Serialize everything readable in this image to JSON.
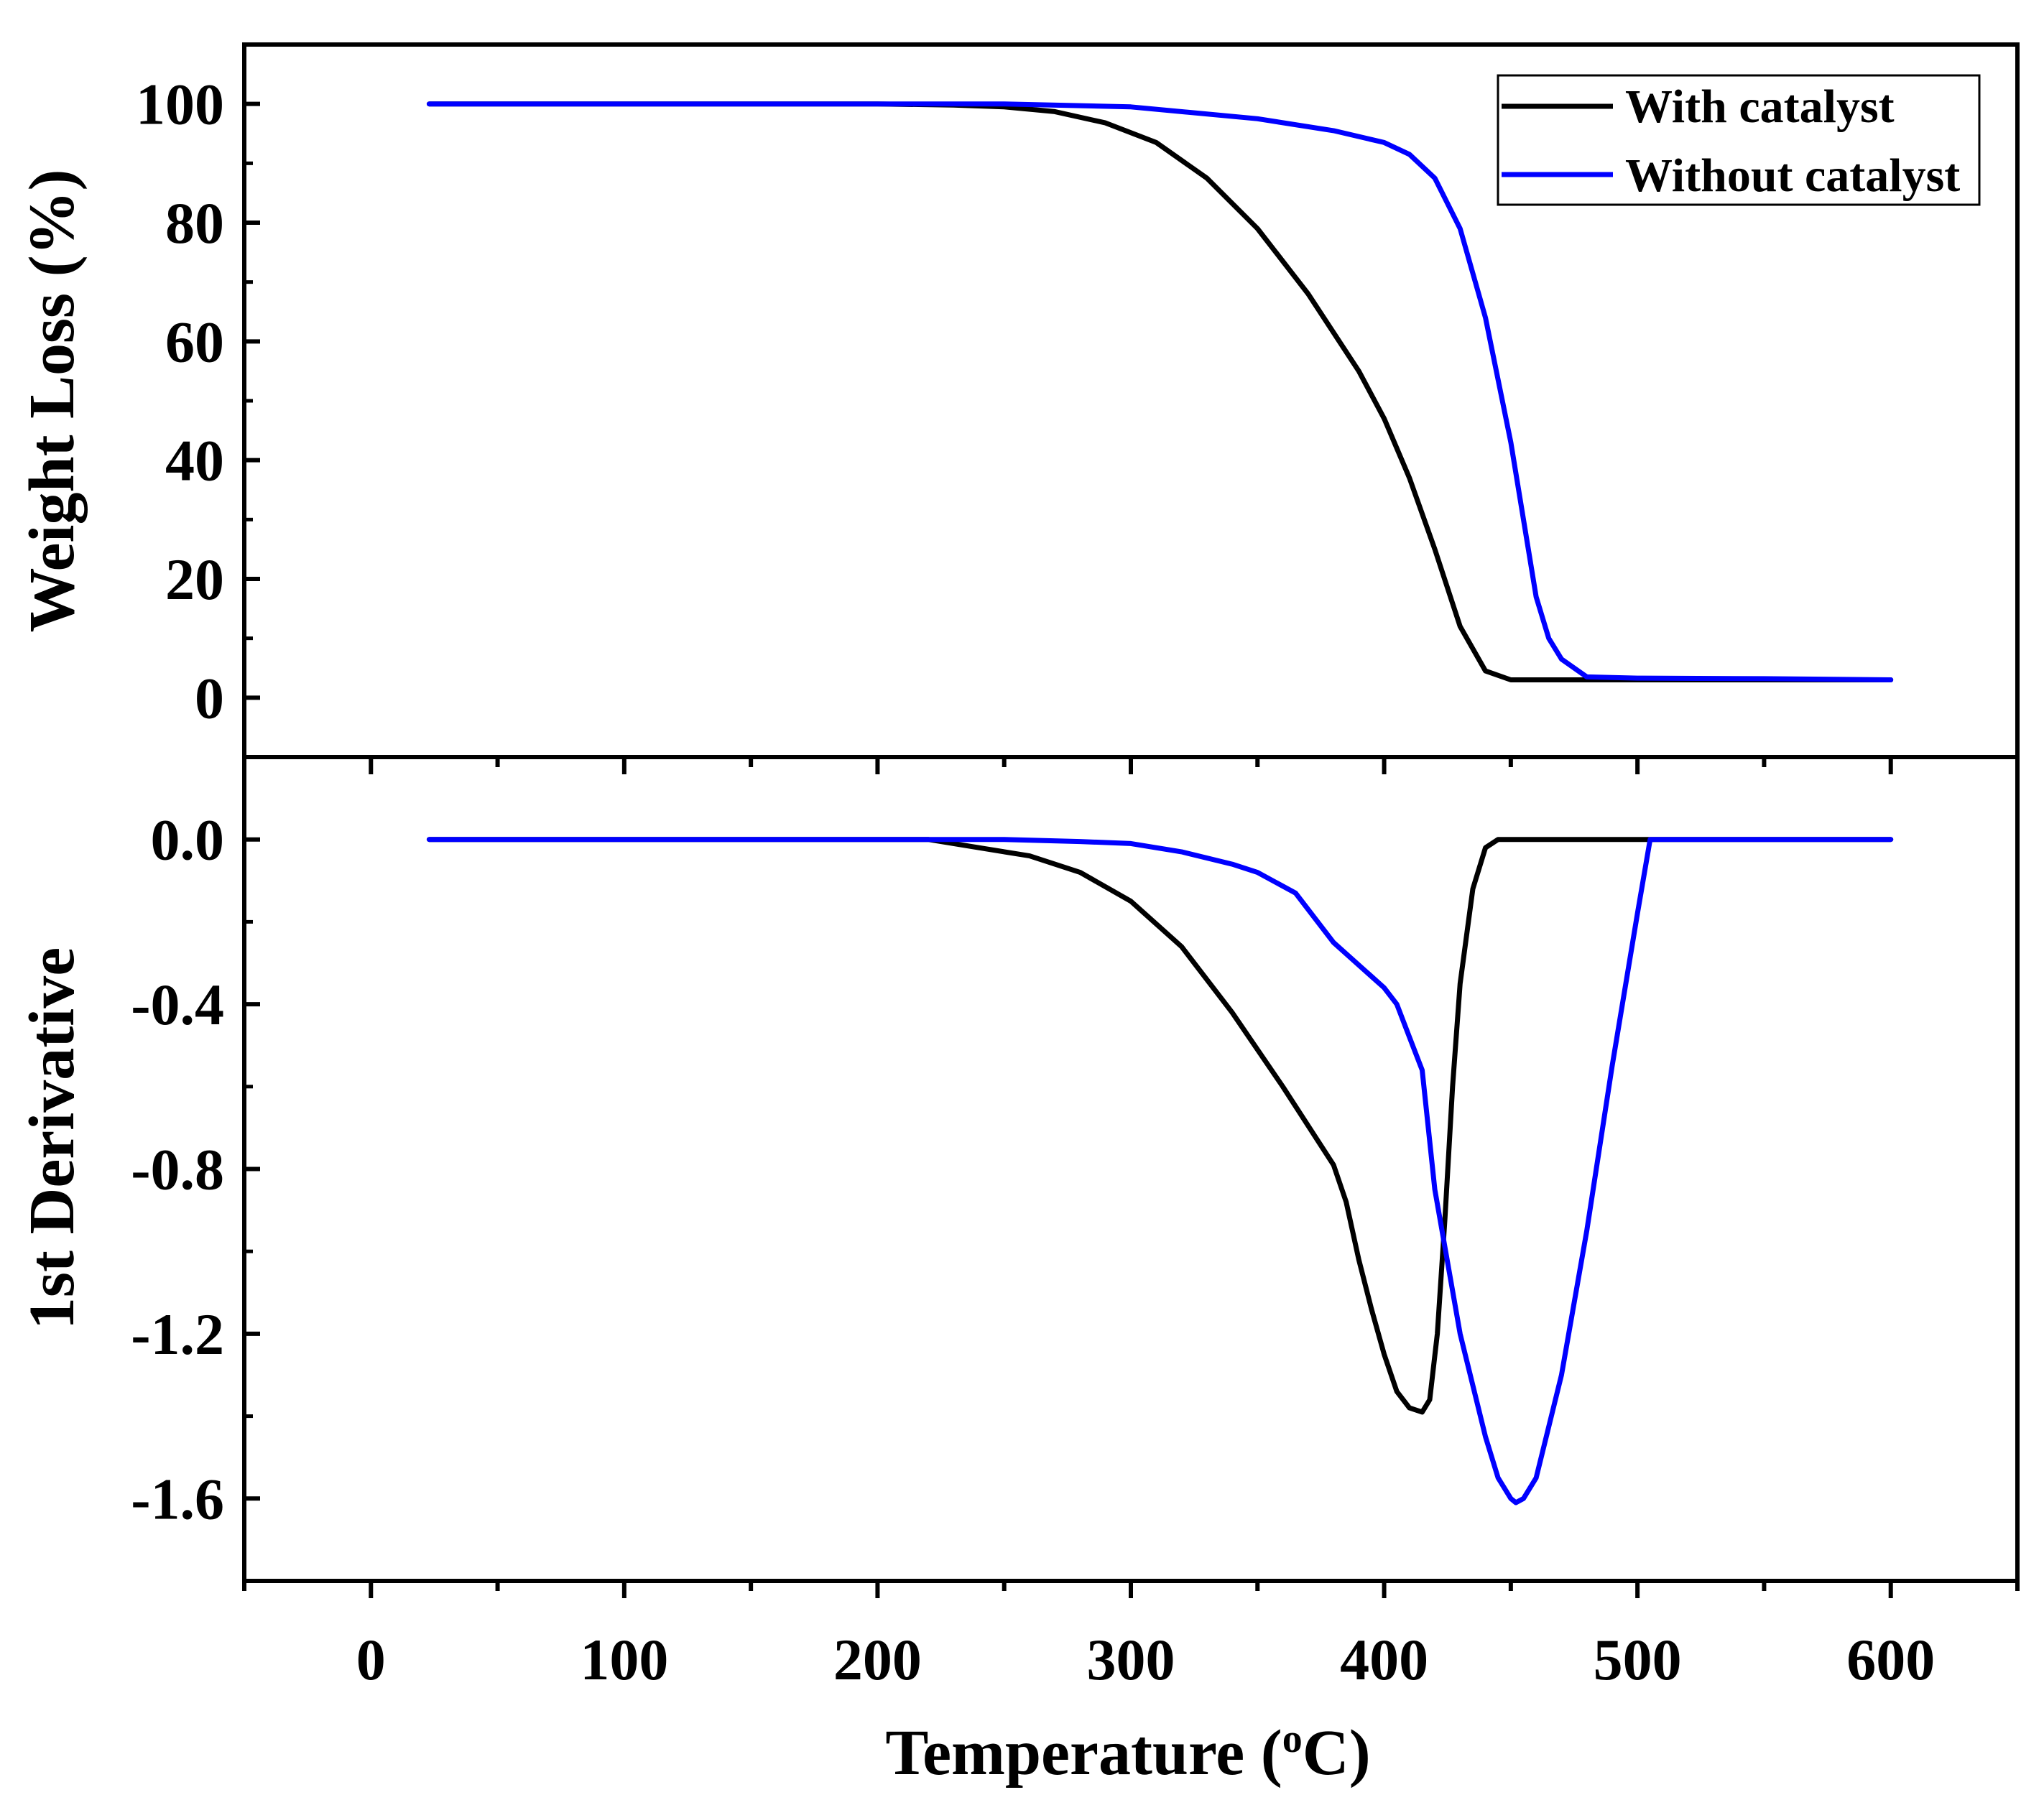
{
  "chart_data": [
    {
      "type": "line",
      "panel": "top",
      "ylabel": "Weight Loss (%)",
      "xlabel": "Temperature (oC)",
      "xlim": [
        -50,
        650
      ],
      "ylim": [
        -10,
        110
      ],
      "yticks": [
        0,
        20,
        40,
        60,
        80,
        100
      ],
      "ytick_labels": [
        "0",
        "20",
        "40",
        "60",
        "80",
        "100"
      ],
      "legend": {
        "placement": "top-right",
        "entries": [
          {
            "name": "With catalyst",
            "color": "#000000"
          },
          {
            "name": "Without catalyst",
            "color": "#0000ff"
          }
        ]
      },
      "series": [
        {
          "name": "With catalyst",
          "color": "#000000",
          "x": [
            23,
            100,
            200,
            230,
            250,
            270,
            290,
            310,
            330,
            350,
            370,
            390,
            400,
            410,
            420,
            430,
            440,
            450,
            500,
            550,
            600
          ],
          "y": [
            100,
            100,
            100,
            99.8,
            99.5,
            98.7,
            96.8,
            93.5,
            87.5,
            79,
            68,
            55,
            47,
            37,
            25,
            12,
            4.5,
            3,
            3,
            3,
            3
          ]
        },
        {
          "name": "Without catalyst",
          "color": "#0000ff",
          "x": [
            23,
            100,
            200,
            250,
            300,
            350,
            380,
            400,
            410,
            420,
            430,
            440,
            450,
            460,
            465,
            470,
            480,
            500,
            550,
            600
          ],
          "y": [
            100,
            100,
            100,
            100,
            99.5,
            97.5,
            95.5,
            93.5,
            91.5,
            87.5,
            79,
            64,
            43,
            17,
            10,
            6.5,
            3.5,
            3.3,
            3.2,
            3
          ]
        }
      ]
    },
    {
      "type": "line",
      "panel": "bottom",
      "ylabel": "1st Derivative",
      "xlabel": "Temperature (oC)",
      "xlim": [
        -50,
        650
      ],
      "ylim": [
        -1.8,
        0.2
      ],
      "yticks": [
        0.0,
        -0.4,
        -0.8,
        -1.2,
        -1.6
      ],
      "ytick_labels": [
        "0.0",
        "-0.4",
        "-0.8",
        "-1.2",
        "-1.6"
      ],
      "xticks": [
        0,
        100,
        200,
        300,
        400,
        500,
        600
      ],
      "xtick_labels": [
        "0",
        "100",
        "200",
        "300",
        "400",
        "500",
        "600"
      ],
      "series": [
        {
          "name": "With catalyst",
          "color": "#000000",
          "x": [
            23,
            40,
            60,
            100,
            200,
            220,
            240,
            260,
            280,
            300,
            320,
            340,
            360,
            380,
            385,
            390,
            395,
            400,
            405,
            410,
            415,
            418,
            421,
            424,
            427,
            430,
            435,
            440,
            445,
            450,
            460,
            500,
            550,
            600
          ],
          "y": [
            0,
            0,
            0,
            0,
            0,
            0,
            -0.02,
            -0.04,
            -0.08,
            -0.15,
            -0.26,
            -0.42,
            -0.6,
            -0.79,
            -0.88,
            -1.02,
            -1.14,
            -1.25,
            -1.34,
            -1.38,
            -1.39,
            -1.36,
            -1.2,
            -0.92,
            -0.6,
            -0.35,
            -0.12,
            -0.02,
            0,
            0,
            0,
            0,
            0,
            0
          ]
        },
        {
          "name": "Without catalyst",
          "color": "#0000ff",
          "x": [
            23,
            100,
            200,
            250,
            280,
            300,
            320,
            340,
            350,
            365,
            380,
            400,
            405,
            410,
            415,
            420,
            430,
            440,
            445,
            450,
            452,
            455,
            460,
            470,
            480,
            490,
            500,
            505,
            510,
            550,
            600
          ],
          "y": [
            0,
            0,
            0,
            0,
            -0.005,
            -0.01,
            -0.03,
            -0.06,
            -0.08,
            -0.13,
            -0.25,
            -0.36,
            -0.4,
            -0.48,
            -0.56,
            -0.85,
            -1.2,
            -1.45,
            -1.55,
            -1.6,
            -1.61,
            -1.6,
            -1.55,
            -1.3,
            -0.95,
            -0.55,
            -0.18,
            0,
            0,
            0,
            0
          ]
        }
      ]
    }
  ]
}
